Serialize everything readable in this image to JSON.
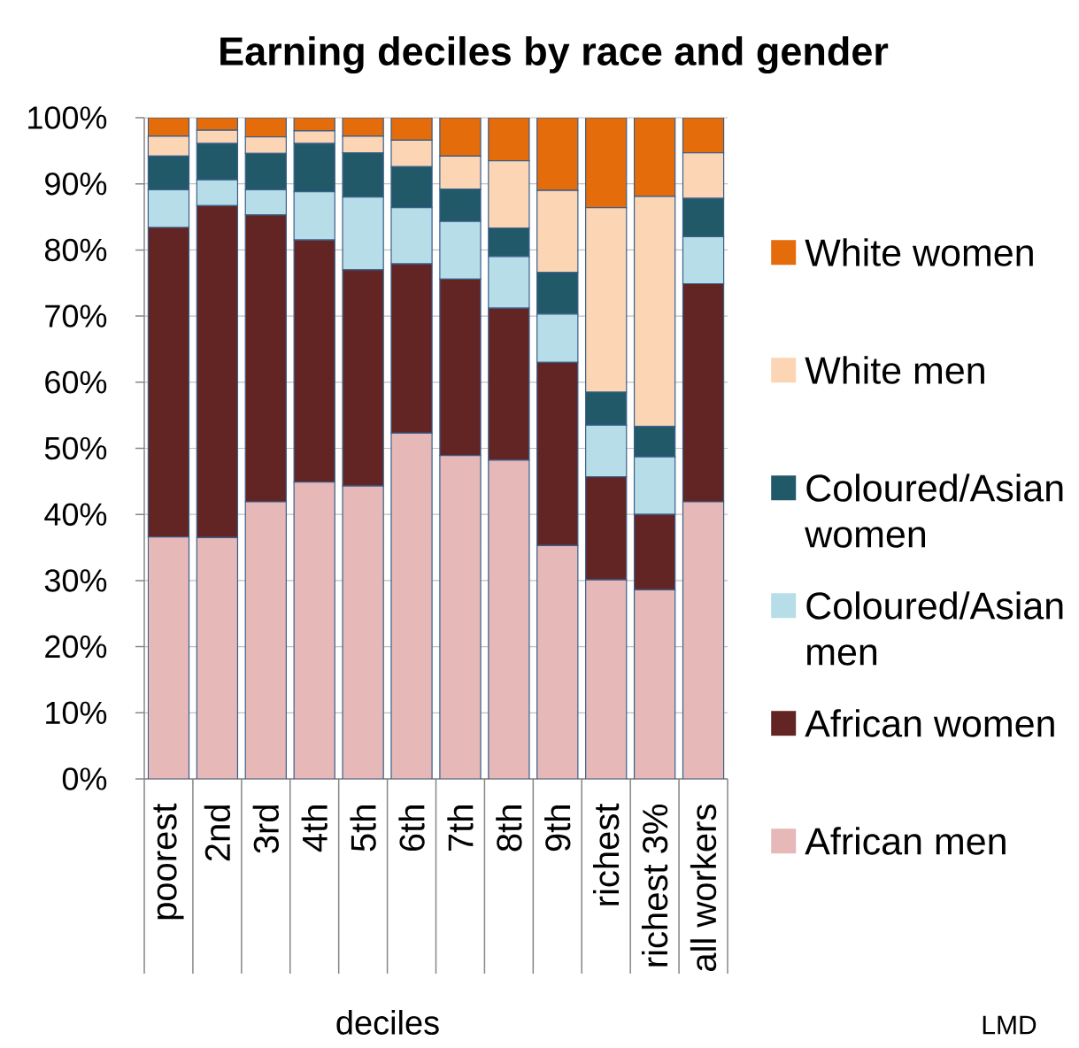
{
  "chart_data": {
    "type": "bar",
    "stacked": true,
    "title": "Earning deciles by race and gender",
    "xlabel": "deciles",
    "categories": [
      "poorest",
      "2nd",
      "3rd",
      "4th",
      "5th",
      "6th",
      "7th",
      "8th",
      "9th",
      "richest",
      "richest 3%",
      "all workers"
    ],
    "series": [
      {
        "name": "African men",
        "color": "#e6b8b7",
        "values": [
          36.6,
          36.5,
          41.9,
          44.9,
          44.3,
          52.3,
          48.9,
          48.2,
          35.3,
          30.1,
          28.6,
          41.9
        ]
      },
      {
        "name": "African women",
        "color": "#632523",
        "values": [
          46.8,
          50.2,
          43.4,
          36.6,
          32.7,
          25.6,
          26.7,
          23.0,
          27.7,
          15.6,
          11.4,
          33.0
        ]
      },
      {
        "name": "Coloured/Asian men",
        "color": "#b7dee8",
        "values": [
          5.7,
          3.9,
          3.8,
          7.3,
          11.0,
          8.5,
          8.7,
          7.8,
          7.3,
          7.8,
          8.7,
          7.1
        ]
      },
      {
        "name": "Coloured/Asian women",
        "color": "#215968",
        "values": [
          5.1,
          5.5,
          5.5,
          7.3,
          6.7,
          6.2,
          4.9,
          4.3,
          6.3,
          5.0,
          4.6,
          5.8
        ]
      },
      {
        "name": "White men",
        "color": "#fcd5b5",
        "values": [
          3.0,
          2.0,
          2.5,
          1.9,
          2.5,
          4.0,
          5.0,
          10.2,
          12.4,
          27.9,
          34.8,
          6.9
        ]
      },
      {
        "name": "White women",
        "color": "#e46c0a",
        "values": [
          2.8,
          1.9,
          2.9,
          2.0,
          2.8,
          3.4,
          5.8,
          6.5,
          11.0,
          13.6,
          11.9,
          5.3
        ]
      }
    ],
    "ylim": [
      0,
      100
    ],
    "yticks": [
      {
        "value": 0,
        "label": "0%"
      },
      {
        "value": 10,
        "label": "10%"
      },
      {
        "value": 20,
        "label": "20%"
      },
      {
        "value": 30,
        "label": "30%"
      },
      {
        "value": 40,
        "label": "40%"
      },
      {
        "value": 50,
        "label": "50%"
      },
      {
        "value": 60,
        "label": "60%"
      },
      {
        "value": 70,
        "label": "70%"
      },
      {
        "value": 80,
        "label": "80%"
      },
      {
        "value": 90,
        "label": "90%"
      },
      {
        "value": 100,
        "label": "100%"
      }
    ],
    "grid": "y",
    "legend": "right",
    "annotations": [
      "LMD"
    ]
  }
}
